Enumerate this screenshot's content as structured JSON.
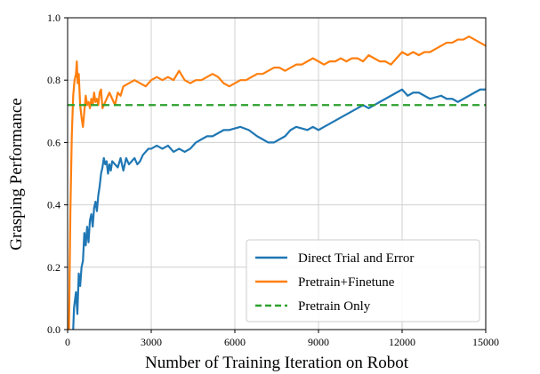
{
  "chart_data": {
    "type": "line",
    "xlabel": "Number of Training Iteration on Robot",
    "ylabel": "Grasping Performance",
    "xlim": [
      0,
      15000
    ],
    "ylim": [
      0.0,
      1.0
    ],
    "xticks": [
      "0",
      "3000",
      "6000",
      "9000",
      "12000",
      "15000"
    ],
    "yticks": [
      "0.0",
      "0.2",
      "0.4",
      "0.6",
      "0.8",
      "1.0"
    ],
    "grid": true,
    "legend_position": "lower-right",
    "series": [
      {
        "name": "Direct Trial and Error",
        "color": "#1f77b4",
        "style": "solid",
        "x": [
          200,
          230,
          300,
          350,
          400,
          450,
          500,
          550,
          600,
          650,
          700,
          750,
          800,
          850,
          900,
          950,
          1000,
          1050,
          1100,
          1150,
          1200,
          1250,
          1300,
          1350,
          1400,
          1450,
          1500,
          1550,
          1600,
          1700,
          1800,
          1900,
          2000,
          2100,
          2200,
          2300,
          2400,
          2500,
          2600,
          2700,
          2800,
          2900,
          3000,
          3200,
          3400,
          3600,
          3800,
          4000,
          4200,
          4400,
          4600,
          4800,
          5000,
          5200,
          5400,
          5600,
          5800,
          6000,
          6200,
          6500,
          6800,
          7000,
          7200,
          7400,
          7600,
          7800,
          8000,
          8200,
          8400,
          8600,
          8800,
          9000,
          9200,
          9400,
          9600,
          9800,
          10000,
          10200,
          10400,
          10600,
          10800,
          11000,
          11200,
          11400,
          11600,
          11800,
          12000,
          12200,
          12400,
          12600,
          12800,
          13000,
          13200,
          13400,
          13600,
          13800,
          14000,
          14200,
          14400,
          14600,
          14800,
          15000
        ],
        "y": [
          0.0,
          0.07,
          0.12,
          0.05,
          0.18,
          0.14,
          0.2,
          0.22,
          0.31,
          0.27,
          0.33,
          0.28,
          0.35,
          0.37,
          0.33,
          0.39,
          0.41,
          0.38,
          0.43,
          0.46,
          0.5,
          0.52,
          0.55,
          0.53,
          0.54,
          0.5,
          0.53,
          0.51,
          0.54,
          0.53,
          0.52,
          0.55,
          0.51,
          0.55,
          0.53,
          0.54,
          0.55,
          0.53,
          0.54,
          0.56,
          0.57,
          0.58,
          0.58,
          0.59,
          0.58,
          0.59,
          0.57,
          0.58,
          0.57,
          0.58,
          0.6,
          0.61,
          0.62,
          0.62,
          0.63,
          0.64,
          0.64,
          0.645,
          0.65,
          0.64,
          0.62,
          0.61,
          0.6,
          0.6,
          0.61,
          0.62,
          0.64,
          0.65,
          0.645,
          0.64,
          0.65,
          0.64,
          0.65,
          0.66,
          0.67,
          0.68,
          0.69,
          0.7,
          0.71,
          0.72,
          0.71,
          0.72,
          0.73,
          0.74,
          0.75,
          0.76,
          0.77,
          0.75,
          0.76,
          0.76,
          0.75,
          0.74,
          0.745,
          0.75,
          0.74,
          0.74,
          0.73,
          0.74,
          0.75,
          0.76,
          0.77,
          0.77
        ]
      },
      {
        "name": "Pretrain+Finetune",
        "color": "#ff7f0e",
        "style": "solid",
        "x": [
          50,
          100,
          150,
          200,
          250,
          300,
          330,
          360,
          400,
          450,
          500,
          550,
          600,
          650,
          700,
          750,
          800,
          850,
          900,
          950,
          1000,
          1050,
          1100,
          1150,
          1200,
          1250,
          1300,
          1350,
          1400,
          1500,
          1600,
          1700,
          1800,
          1900,
          2000,
          2200,
          2400,
          2600,
          2800,
          3000,
          3200,
          3400,
          3600,
          3800,
          4000,
          4200,
          4400,
          4600,
          4800,
          5000,
          5200,
          5400,
          5600,
          5800,
          6000,
          6200,
          6400,
          6600,
          6800,
          7000,
          7200,
          7400,
          7600,
          7800,
          8000,
          8200,
          8400,
          8600,
          8800,
          9000,
          9200,
          9400,
          9600,
          9800,
          10000,
          10200,
          10400,
          10600,
          10800,
          11000,
          11200,
          11400,
          11600,
          11800,
          12000,
          12200,
          12400,
          12600,
          12800,
          13000,
          13200,
          13400,
          13600,
          13800,
          14000,
          14200,
          14400,
          14600,
          14800,
          15000
        ],
        "y": [
          0.0,
          0.38,
          0.62,
          0.75,
          0.8,
          0.82,
          0.86,
          0.79,
          0.82,
          0.72,
          0.68,
          0.65,
          0.7,
          0.75,
          0.72,
          0.73,
          0.71,
          0.74,
          0.72,
          0.76,
          0.73,
          0.74,
          0.72,
          0.76,
          0.77,
          0.71,
          0.72,
          0.73,
          0.74,
          0.76,
          0.74,
          0.72,
          0.76,
          0.75,
          0.78,
          0.79,
          0.8,
          0.79,
          0.78,
          0.8,
          0.81,
          0.8,
          0.81,
          0.8,
          0.83,
          0.8,
          0.79,
          0.8,
          0.8,
          0.81,
          0.82,
          0.81,
          0.79,
          0.78,
          0.79,
          0.8,
          0.8,
          0.81,
          0.82,
          0.82,
          0.83,
          0.84,
          0.84,
          0.83,
          0.84,
          0.85,
          0.85,
          0.86,
          0.87,
          0.86,
          0.85,
          0.86,
          0.86,
          0.87,
          0.86,
          0.87,
          0.87,
          0.86,
          0.88,
          0.87,
          0.86,
          0.86,
          0.85,
          0.87,
          0.89,
          0.88,
          0.89,
          0.88,
          0.89,
          0.89,
          0.9,
          0.91,
          0.92,
          0.92,
          0.93,
          0.93,
          0.94,
          0.93,
          0.92,
          0.91
        ]
      },
      {
        "name": "Pretrain Only",
        "color": "#2ca02c",
        "style": "dashed",
        "x": [
          0,
          15000
        ],
        "y": [
          0.72,
          0.72
        ]
      }
    ]
  }
}
